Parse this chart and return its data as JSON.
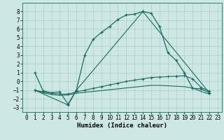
{
  "bg_color": "#cde8e4",
  "grid_color": "#aacfca",
  "line_color": "#1a6b5e",
  "x_label": "Humidex (Indice chaleur)",
  "xlim": [
    -0.5,
    23.5
  ],
  "ylim": [
    -3.5,
    9.0
  ],
  "xticks": [
    0,
    1,
    2,
    3,
    4,
    5,
    6,
    7,
    8,
    9,
    10,
    11,
    12,
    13,
    14,
    15,
    16,
    17,
    18,
    19,
    20,
    21,
    22,
    23
  ],
  "yticks": [
    -3,
    -2,
    -1,
    0,
    1,
    2,
    3,
    4,
    5,
    6,
    7,
    8
  ],
  "series1_x": [
    1,
    2,
    3,
    4,
    5,
    6,
    7,
    8,
    9,
    10,
    11,
    12,
    13,
    14,
    15,
    16,
    17,
    18,
    19,
    20,
    21,
    22
  ],
  "series1_y": [
    1.0,
    -1.1,
    -1.3,
    -1.2,
    -2.6,
    -1.0,
    3.0,
    4.8,
    5.6,
    6.3,
    7.1,
    7.6,
    7.7,
    8.0,
    7.8,
    6.3,
    3.3,
    2.4,
    1.0,
    -0.8,
    -0.85,
    -1.3
  ],
  "series2_x": [
    1,
    2,
    3,
    4,
    5,
    6,
    7,
    8,
    9,
    10,
    11,
    12,
    13,
    14,
    15,
    16,
    17,
    18,
    19,
    20,
    21,
    22
  ],
  "series2_y": [
    -1.0,
    -1.2,
    -1.35,
    -1.45,
    -1.45,
    -1.2,
    -1.0,
    -0.8,
    -0.6,
    -0.4,
    -0.2,
    0.0,
    0.15,
    0.3,
    0.45,
    0.5,
    0.55,
    0.6,
    0.65,
    0.3,
    -0.7,
    -1.1
  ],
  "series3_x": [
    1,
    2,
    3,
    4,
    5,
    6,
    7,
    8,
    9,
    10,
    11,
    12,
    13,
    14,
    15,
    16,
    17,
    18,
    19,
    20,
    21,
    22
  ],
  "series3_y": [
    -1.0,
    -1.3,
    -1.5,
    -1.6,
    -1.55,
    -1.35,
    -1.25,
    -1.15,
    -1.05,
    -0.95,
    -0.85,
    -0.75,
    -0.65,
    -0.55,
    -0.45,
    -0.45,
    -0.5,
    -0.55,
    -0.6,
    -0.75,
    -1.15,
    -1.45
  ],
  "series4_x": [
    1,
    5,
    6,
    14,
    22
  ],
  "series4_y": [
    -1.0,
    -2.7,
    -1.0,
    8.0,
    -1.3
  ],
  "tick_fontsize": 5.5,
  "label_fontsize": 6.5
}
